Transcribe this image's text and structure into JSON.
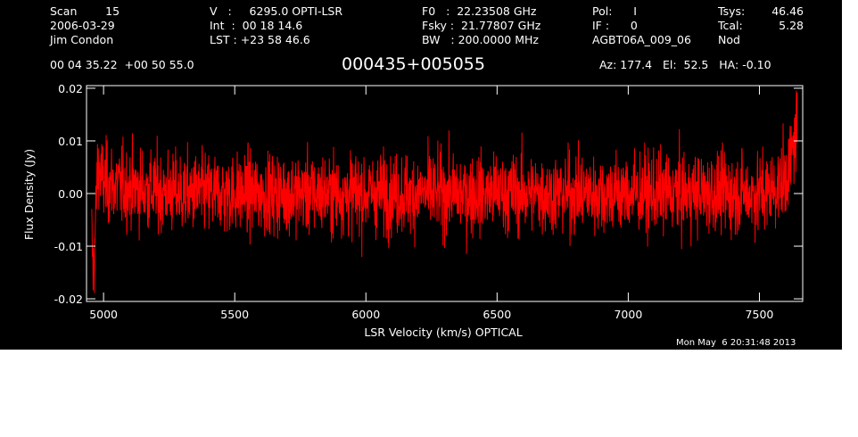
{
  "header": {
    "col1": [
      "Scan        15",
      "2006-03-29",
      "Jim Condon"
    ],
    "col2": [
      "V   :     6295.0 OPTI-LSR",
      "Int  :  00 18 14.6",
      "LST : +23 58 46.6"
    ],
    "col3": [
      "F0   :  22.23508 GHz",
      "Fsky :  21.77807 GHz",
      "BW   : 200.0000 MHz"
    ],
    "col4": [
      "Pol:      I",
      "IF :      0",
      "AGBT06A_009_06"
    ],
    "col5": [
      "Tsys:",
      "Tcal:",
      "Nod"
    ],
    "col6": [
      "46.46",
      "5.28",
      ""
    ],
    "coords": "00 04 35.22  +00 50 55.0",
    "source": "000435+005055",
    "azelha": "Az: 177.4   El:  52.5   HA: -0.10",
    "timestamp": "Mon May  6 20:31:48 2013"
  },
  "chart_data": {
    "type": "line",
    "title": "000435+005055",
    "xlabel": "LSR Velocity (km/s) OPTICAL",
    "ylabel": "Flux Density (Jy)",
    "xlim": [
      4935,
      7665
    ],
    "ylim": [
      -0.0205,
      0.0205
    ],
    "xticks": [
      5000,
      5500,
      6000,
      6500,
      7000,
      7500
    ],
    "xtick_labels": [
      "5000",
      "5500",
      "6000",
      "6500",
      "7000",
      "7500"
    ],
    "yticks": [
      -0.02,
      -0.01,
      0.0,
      0.01,
      0.02
    ],
    "ytick_labels": [
      "-0.02",
      "-0.01",
      "0.00",
      "0.01",
      "0.02"
    ],
    "series_color": "#ff0000",
    "series": [
      {
        "x": [
          4955,
          4960,
          4965,
          4970,
          4975,
          4980,
          4985,
          5000,
          5100,
          5300,
          5500,
          5700,
          5900,
          6100,
          6300,
          6500,
          6700,
          6900,
          7100,
          7300,
          7500,
          7560,
          7600,
          7620,
          7640,
          7645
        ],
        "y": [
          -0.008,
          -0.015,
          -0.012,
          -0.005,
          0.003,
          0.005,
          0.004,
          0.002,
          0.001,
          0.0,
          0.0,
          0.0,
          0.0,
          0.0,
          0.0,
          0.0,
          0.0,
          0.0,
          0.0,
          0.0,
          0.0,
          0.001,
          0.003,
          0.006,
          0.012,
          0.014
        ]
      }
    ]
  }
}
